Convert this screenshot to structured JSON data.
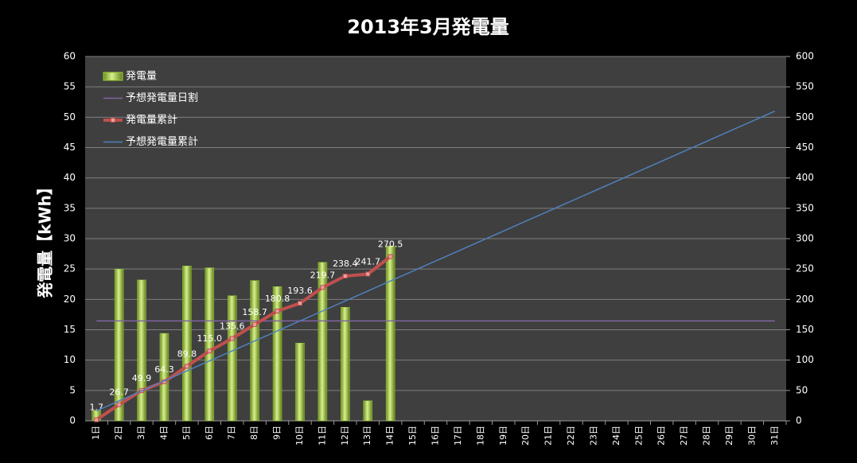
{
  "chart_data": {
    "type": "combo",
    "title": "2013年3月発電量",
    "y_label": "発電量【kWh】",
    "categories": [
      "1日",
      "2日",
      "3日",
      "4日",
      "5日",
      "6日",
      "7日",
      "8日",
      "9日",
      "10日",
      "11日",
      "12日",
      "13日",
      "14日",
      "15日",
      "16日",
      "17日",
      "18日",
      "19日",
      "20日",
      "21日",
      "22日",
      "23日",
      "24日",
      "25日",
      "26日",
      "27日",
      "28日",
      "29日",
      "30日",
      "31日"
    ],
    "ylim": [
      0,
      60
    ],
    "yticks": [
      0,
      5,
      10,
      15,
      20,
      25,
      30,
      35,
      40,
      45,
      50,
      55,
      60
    ],
    "y2lim": [
      0,
      600
    ],
    "y2ticks": [
      0,
      50,
      100,
      150,
      200,
      250,
      300,
      350,
      400,
      450,
      500,
      550,
      600
    ],
    "grid": true,
    "legend": "upper left",
    "series": [
      {
        "name": "発電量",
        "type": "bar",
        "color": "#9acd32",
        "values": [
          1.7,
          25.0,
          23.2,
          14.4,
          25.5,
          25.2,
          20.6,
          23.1,
          22.1,
          12.8,
          26.1,
          18.7,
          3.3,
          28.8,
          null,
          null,
          null,
          null,
          null,
          null,
          null,
          null,
          null,
          null,
          null,
          null,
          null,
          null,
          null,
          null,
          null
        ]
      },
      {
        "name": "予想発電量日割",
        "type": "line",
        "color": "#8064a2",
        "values": [
          16.45,
          16.45,
          16.45,
          16.45,
          16.45,
          16.45,
          16.45,
          16.45,
          16.45,
          16.45,
          16.45,
          16.45,
          16.45,
          16.45,
          16.45,
          16.45,
          16.45,
          16.45,
          16.45,
          16.45,
          16.45,
          16.45,
          16.45,
          16.45,
          16.45,
          16.45,
          16.45,
          16.45,
          16.45,
          16.45,
          16.45
        ]
      },
      {
        "name": "発電量累計",
        "type": "line",
        "color": "#c0504d",
        "axis": "y2",
        "markers": true,
        "values": [
          1.7,
          26.7,
          49.9,
          64.3,
          89.8,
          115.0,
          135.6,
          158.7,
          180.8,
          193.6,
          219.7,
          238.4,
          241.7,
          270.5,
          null,
          null,
          null,
          null,
          null,
          null,
          null,
          null,
          null,
          null,
          null,
          null,
          null,
          null,
          null,
          null,
          null
        ],
        "value_labels": [
          "1.7",
          "26.7",
          "49.9",
          "64.3",
          "89.8",
          "115.0",
          "135.6",
          "158.7",
          "180.8",
          "193.6",
          "219.7",
          "238.4",
          "241.7",
          "270.5",
          null,
          null,
          null,
          null,
          null,
          null,
          null,
          null,
          null,
          null,
          null,
          null,
          null,
          null,
          null,
          null,
          null
        ]
      },
      {
        "name": "予想発電量累計",
        "type": "line",
        "color": "#4f81bd",
        "axis": "y2",
        "values": [
          16.45,
          32.9,
          49.35,
          65.8,
          82.25,
          98.7,
          115.15,
          131.6,
          148.05,
          164.5,
          180.95,
          197.4,
          213.85,
          230.3,
          246.75,
          263.2,
          279.65,
          296.1,
          312.55,
          329,
          345.45,
          361.9,
          378.35,
          394.8,
          411.25,
          427.7,
          444.15,
          460.6,
          477.05,
          493.5,
          509.95
        ]
      }
    ]
  }
}
